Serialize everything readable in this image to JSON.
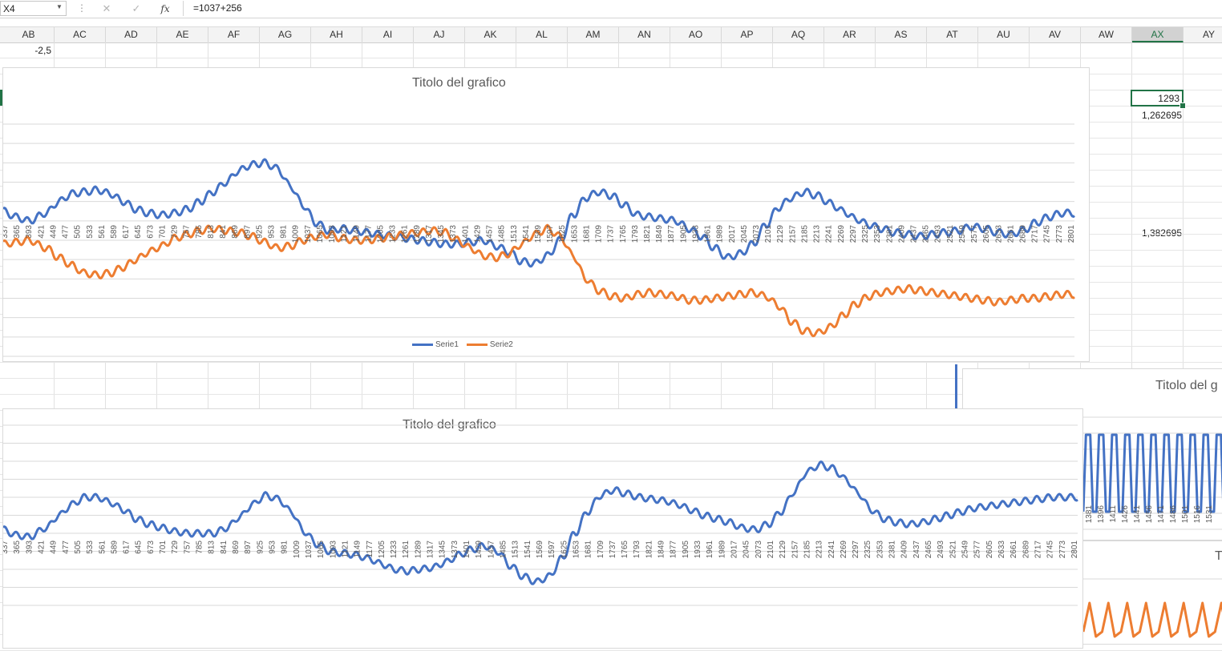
{
  "formula_bar": {
    "name_box": "X4",
    "cancel_icon": "✕",
    "confirm_icon": "✓",
    "fx_label": "fx",
    "formula": "=1037+256"
  },
  "columns": [
    "AB",
    "AC",
    "AD",
    "AE",
    "AF",
    "AG",
    "AH",
    "AI",
    "AJ",
    "AK",
    "AL",
    "AM",
    "AN",
    "AO",
    "AP",
    "AQ",
    "AR",
    "AS",
    "AT",
    "AU",
    "AV",
    "AW",
    "AX",
    "AY"
  ],
  "selected_column": "AX",
  "cells": {
    "ab1": "-2,5",
    "ax4": "1293",
    "ax5": "1,262695",
    "ax10": "1,382695"
  },
  "colors": {
    "series1": "#4472c4",
    "series2": "#ed7d31",
    "selection": "#217346"
  },
  "chart_data": [
    {
      "type": "line",
      "title": "Titolo del grafico",
      "x_ticks": [
        "337",
        "365",
        "393",
        "421",
        "449",
        "477",
        "505",
        "533",
        "561",
        "589",
        "617",
        "645",
        "673",
        "701",
        "729",
        "757",
        "785",
        "813",
        "841",
        "869",
        "897",
        "925",
        "953",
        "981",
        "1009",
        "1037",
        "1065",
        "1093",
        "1121",
        "1149",
        "1177",
        "1205",
        "1233",
        "1261",
        "1289",
        "1317",
        "1345",
        "1373",
        "1401",
        "1429",
        "1457",
        "1485",
        "1513",
        "1541",
        "1569",
        "1597",
        "1625",
        "1653",
        "1681",
        "1709",
        "1737",
        "1765",
        "1793",
        "1821",
        "1849",
        "1877",
        "1905",
        "1933",
        "1961",
        "1989",
        "2017",
        "2045",
        "2073",
        "2101",
        "2129",
        "2157",
        "2185",
        "2213",
        "2241",
        "2269",
        "2297",
        "2325",
        "2353",
        "2381",
        "2409",
        "2437",
        "2465",
        "2493",
        "2521",
        "2549",
        "2577",
        "2605",
        "2633",
        "2661",
        "2689",
        "2717",
        "2745",
        "2773",
        "2801"
      ],
      "ylim": [
        0,
        12
      ],
      "grid": true,
      "legend": "bottom",
      "series": [
        {
          "name": "Serie1",
          "x": [
            320,
            350,
            380,
            420,
            450,
            480,
            510,
            540,
            570,
            600,
            630,
            660,
            690,
            720,
            750,
            780,
            810,
            840,
            870,
            900,
            930,
            960,
            990,
            1020,
            1050,
            1080,
            1110,
            1140,
            1170,
            1200,
            1230,
            1260,
            1290,
            1320,
            1350,
            1380,
            1410,
            1440,
            1470,
            1500,
            1530,
            1560,
            1590,
            1620,
            1650,
            1680,
            1710,
            1740,
            1770,
            1800,
            1830,
            1860,
            1890,
            1920,
            1950,
            1980,
            2010,
            2040,
            2070,
            2100,
            2130,
            2160,
            2190,
            2220,
            2250,
            2280,
            2310,
            2340,
            2370,
            2400,
            2430,
            2460,
            2490,
            2520,
            2550,
            2580,
            2610,
            2640,
            2670,
            2700,
            2730,
            2760,
            2790,
            2820
          ],
          "values": [
            7.5,
            7.2,
            7.0,
            7.4,
            8.0,
            8.4,
            8.5,
            8.6,
            8.4,
            8.0,
            7.6,
            7.4,
            7.3,
            7.4,
            7.6,
            8.0,
            8.5,
            9.0,
            9.6,
            9.9,
            10.0,
            9.7,
            8.8,
            7.8,
            6.9,
            6.5,
            6.6,
            6.5,
            6.4,
            6.3,
            6.2,
            6.1,
            6.0,
            5.9,
            5.8,
            5.8,
            5.9,
            6.0,
            5.7,
            5.4,
            4.9,
            4.8,
            5.2,
            6.0,
            7.3,
            8.2,
            8.5,
            8.3,
            7.8,
            7.3,
            7.2,
            7.1,
            7.0,
            6.6,
            6.2,
            5.6,
            5.1,
            5.3,
            5.8,
            6.8,
            7.7,
            8.2,
            8.5,
            8.3,
            7.9,
            7.5,
            7.1,
            6.8,
            6.6,
            6.4,
            6.3,
            6.2,
            6.3,
            6.4,
            6.5,
            6.7,
            6.6,
            6.4,
            6.3,
            6.5,
            6.9,
            7.2,
            7.4,
            7.4
          ]
        },
        {
          "name": "Serie2",
          "x": [
            320,
            350,
            380,
            420,
            450,
            480,
            510,
            540,
            570,
            600,
            630,
            660,
            690,
            720,
            750,
            780,
            810,
            840,
            870,
            900,
            930,
            960,
            990,
            1020,
            1050,
            1080,
            1110,
            1140,
            1170,
            1200,
            1230,
            1260,
            1290,
            1320,
            1350,
            1380,
            1410,
            1440,
            1470,
            1500,
            1530,
            1560,
            1590,
            1620,
            1650,
            1680,
            1710,
            1740,
            1770,
            1800,
            1830,
            1860,
            1890,
            1920,
            1950,
            1980,
            2010,
            2040,
            2070,
            2100,
            2130,
            2160,
            2190,
            2220,
            2250,
            2280,
            2310,
            2340,
            2370,
            2400,
            2430,
            2460,
            2490,
            2520,
            2550,
            2580,
            2610,
            2640,
            2670,
            2700,
            2730,
            2760,
            2790,
            2820
          ],
          "values": [
            5.8,
            5.9,
            6.0,
            5.6,
            5.1,
            4.7,
            4.3,
            4.2,
            4.3,
            4.6,
            5.0,
            5.4,
            5.7,
            6.1,
            6.3,
            6.5,
            6.6,
            6.5,
            6.4,
            6.2,
            5.9,
            5.6,
            5.7,
            6.0,
            6.2,
            6.3,
            6.1,
            6.0,
            6.0,
            6.1,
            6.2,
            6.3,
            6.4,
            6.5,
            6.4,
            6.0,
            5.6,
            5.2,
            5.1,
            5.3,
            5.8,
            6.3,
            6.6,
            6.2,
            5.2,
            4.0,
            3.4,
            3.1,
            3.0,
            3.2,
            3.3,
            3.2,
            3.1,
            2.9,
            2.9,
            3.0,
            3.1,
            3.2,
            3.3,
            3.1,
            2.6,
            1.8,
            1.3,
            1.2,
            1.5,
            2.1,
            2.7,
            3.1,
            3.3,
            3.4,
            3.5,
            3.4,
            3.3,
            3.2,
            3.1,
            3.0,
            2.9,
            2.8,
            2.9,
            3.0,
            3.0,
            3.1,
            3.2,
            3.2
          ]
        }
      ]
    },
    {
      "type": "line",
      "title": "Titolo del grafico",
      "x_ticks": [
        "337",
        "365",
        "393",
        "421",
        "449",
        "477",
        "505",
        "533",
        "561",
        "589",
        "617",
        "645",
        "673",
        "701",
        "729",
        "757",
        "785",
        "813",
        "841",
        "869",
        "897",
        "925",
        "953",
        "981",
        "1009",
        "1037",
        "1065",
        "1093",
        "1121",
        "1149",
        "1177",
        "1205",
        "1233",
        "1261",
        "1289",
        "1317",
        "1345",
        "1373",
        "1401",
        "1429",
        "1457",
        "1485",
        "1513",
        "1541",
        "1569",
        "1597",
        "1625",
        "1653",
        "1681",
        "1709",
        "1737",
        "1765",
        "1793",
        "1821",
        "1849",
        "1877",
        "1905",
        "1933",
        "1961",
        "1989",
        "2017",
        "2045",
        "2073",
        "2101",
        "2129",
        "2157",
        "2185",
        "2213",
        "2241",
        "2269",
        "2297",
        "2325",
        "2353",
        "2381",
        "2409",
        "2437",
        "2465",
        "2493",
        "2521",
        "2549",
        "2577",
        "2605",
        "2633",
        "2661",
        "2689",
        "2717",
        "2745",
        "2773",
        "2801"
      ],
      "ylim": [
        0,
        10
      ],
      "grid": true,
      "series": [
        {
          "x": [
            320,
            350,
            380,
            420,
            450,
            480,
            510,
            540,
            570,
            600,
            630,
            660,
            690,
            720,
            750,
            780,
            810,
            840,
            870,
            900,
            930,
            960,
            990,
            1020,
            1050,
            1080,
            1110,
            1140,
            1170,
            1200,
            1230,
            1260,
            1290,
            1320,
            1350,
            1380,
            1410,
            1440,
            1470,
            1500,
            1530,
            1560,
            1590,
            1620,
            1650,
            1680,
            1710,
            1740,
            1770,
            1800,
            1830,
            1860,
            1890,
            1920,
            1950,
            1980,
            2010,
            2040,
            2070,
            2100,
            2130,
            2160,
            2190,
            2220,
            2250,
            2280,
            2310,
            2340,
            2370,
            2400,
            2430,
            2460,
            2490,
            2520,
            2550,
            2580,
            2610,
            2640,
            2670,
            2700,
            2730,
            2760,
            2790,
            2820
          ],
          "values": [
            4.2,
            3.9,
            3.8,
            4.3,
            5.0,
            5.6,
            6.0,
            6.0,
            5.7,
            5.3,
            4.8,
            4.5,
            4.3,
            4.1,
            4.0,
            4.0,
            4.0,
            4.3,
            4.9,
            5.6,
            6.1,
            5.9,
            5.2,
            4.1,
            3.4,
            3.0,
            2.9,
            2.8,
            2.6,
            2.3,
            2.0,
            1.9,
            2.0,
            2.1,
            2.4,
            2.8,
            3.1,
            3.3,
            3.0,
            2.2,
            1.6,
            1.3,
            1.6,
            2.6,
            4.0,
            5.2,
            6.1,
            6.4,
            6.2,
            6.0,
            5.9,
            5.8,
            5.6,
            5.3,
            5.0,
            4.8,
            4.6,
            4.3,
            4.2,
            4.5,
            5.2,
            6.3,
            7.4,
            7.8,
            7.6,
            7.0,
            6.2,
            5.3,
            4.8,
            4.6,
            4.5,
            4.6,
            4.8,
            5.0,
            5.2,
            5.4,
            5.5,
            5.6,
            5.7,
            5.8,
            5.9,
            6.0,
            6.0,
            6.0
          ]
        }
      ]
    },
    {
      "type": "line",
      "title": "Titolo del g",
      "x_ticks": [
        "1381",
        "1396",
        "1411",
        "1426",
        "1441",
        "1456",
        "1471",
        "1486",
        "1501",
        "1516",
        "1531"
      ],
      "series": [
        {
          "x": [
            1375,
            1378,
            1383,
            1386,
            1390,
            1393,
            1398,
            1401,
            1405,
            1408,
            1413,
            1416,
            1420,
            1423,
            1428,
            1431,
            1435,
            1438,
            1443,
            1446,
            1450,
            1453,
            1458,
            1461,
            1465,
            1468,
            1473,
            1476,
            1480,
            1483,
            1488,
            1491,
            1495,
            1498,
            1503,
            1506,
            1510,
            1513,
            1518,
            1521,
            1525,
            1528,
            1533,
            1536
          ],
          "values": [
            1,
            9,
            9,
            1,
            1,
            9,
            9,
            1,
            1,
            9,
            9,
            1,
            1,
            9,
            9,
            1,
            1,
            9,
            9,
            1,
            1,
            9,
            9,
            1,
            1,
            9,
            9,
            1,
            1,
            9,
            9,
            1,
            1,
            9,
            9,
            1,
            1,
            9,
            9,
            1,
            1,
            9,
            9,
            1
          ]
        }
      ]
    },
    {
      "type": "line",
      "title": "T",
      "series": [
        {
          "x": [
            1,
            2,
            3,
            4,
            5,
            6,
            7,
            8,
            9,
            10,
            11,
            12,
            13,
            14,
            15,
            16,
            17,
            18,
            19,
            20,
            21,
            22,
            23,
            24
          ],
          "values": [
            2,
            8,
            1,
            2,
            8,
            1,
            2,
            8,
            1,
            2,
            8,
            1,
            2,
            8,
            1,
            2,
            8,
            1,
            2,
            8,
            1,
            2,
            8,
            1
          ]
        }
      ]
    }
  ]
}
